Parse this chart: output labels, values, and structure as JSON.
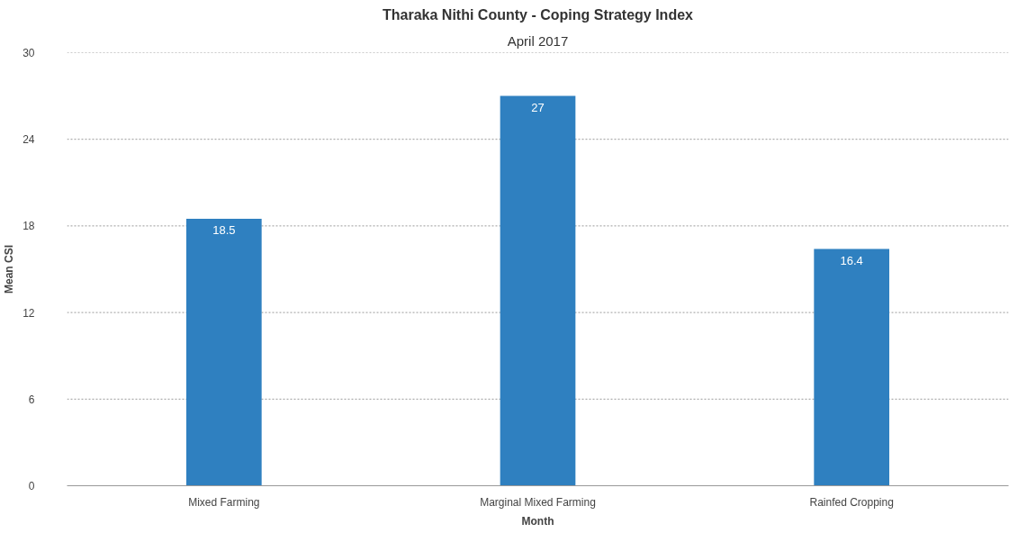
{
  "chart_data": {
    "type": "bar",
    "title": "Tharaka Nithi County - Coping Strategy Index",
    "subtitle": "April 2017",
    "xlabel": "Month",
    "ylabel": "Mean CSI",
    "categories": [
      "Mixed Farming",
      "Marginal Mixed Farming",
      "Rainfed Cropping"
    ],
    "values": [
      18.5,
      27,
      16.4
    ],
    "color": "#2f80c0",
    "ylim": [
      0,
      30
    ],
    "yticks": [
      0,
      6,
      12,
      18,
      24,
      30
    ],
    "grid": "y",
    "data_labels": true
  }
}
